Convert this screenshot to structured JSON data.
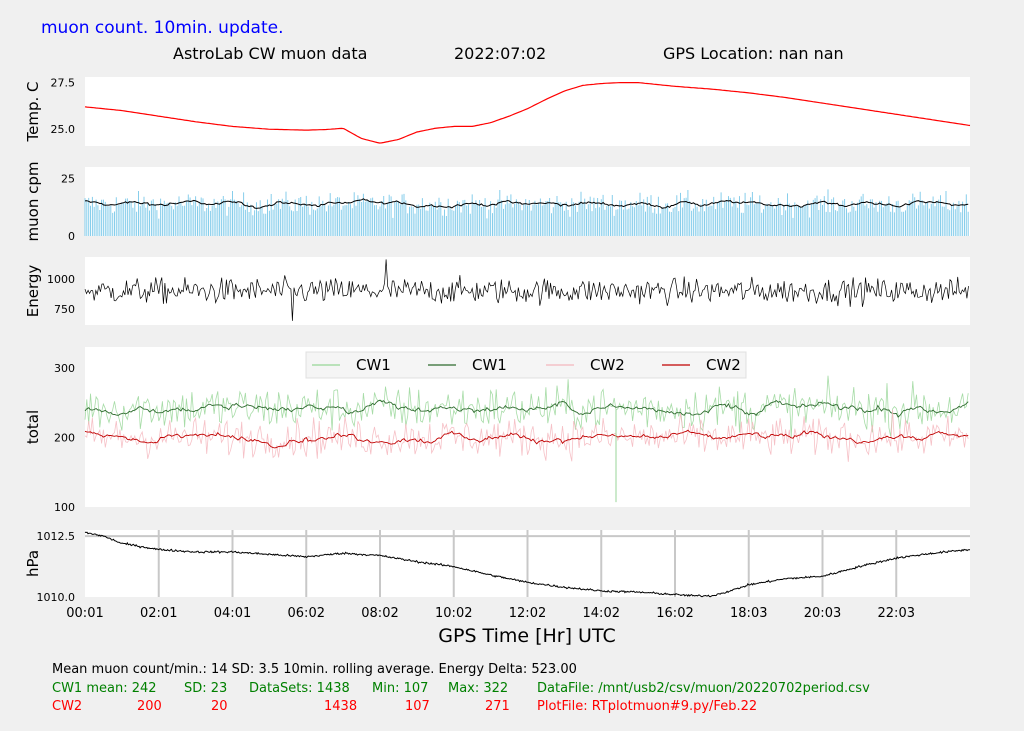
{
  "header": {
    "update_label": "muon count.  10min. update.",
    "title": "AstroLab CW muon data",
    "date": "2022:07:02",
    "gps_location": "GPS Location: nan   nan"
  },
  "colors": {
    "temperature": "#ff0000",
    "muon_bars": "#87ceeb",
    "muon_avg": "#000000",
    "energy": "#000000",
    "cw1_raw": "#98d698",
    "cw1_avg": "#2e6b2e",
    "cw2_raw": "#f4b6bd",
    "cw2_avg": "#c00000",
    "pressure": "#000000",
    "green_text": "#008000",
    "red_text": "#ff0000",
    "blue_text": "#0000ff"
  },
  "chart_data": [
    {
      "type": "line",
      "ylabel": "Temp. C",
      "yticks": [
        25.0,
        27.5
      ],
      "ylim": [
        24.1,
        27.8
      ],
      "xlim": [
        0,
        24
      ],
      "x": [
        0,
        1,
        2,
        3,
        4,
        5,
        6,
        6.5,
        7.0,
        7.5,
        8.0,
        8.5,
        9.0,
        9.5,
        10,
        10.5,
        11,
        11.5,
        12,
        12.5,
        13,
        13.5,
        14,
        14.5,
        15,
        15.5,
        16,
        17,
        18,
        19,
        20,
        21,
        22,
        23,
        24
      ],
      "y": [
        26.2,
        26.0,
        25.7,
        25.4,
        25.15,
        25.0,
        24.95,
        24.98,
        25.05,
        24.5,
        24.25,
        24.45,
        24.85,
        25.05,
        25.15,
        25.15,
        25.35,
        25.7,
        26.1,
        26.6,
        27.05,
        27.35,
        27.45,
        27.5,
        27.5,
        27.4,
        27.3,
        27.15,
        26.95,
        26.7,
        26.4,
        26.1,
        25.8,
        25.5,
        25.2
      ],
      "series": [
        {
          "name": "",
          "color": "#ff0000"
        }
      ]
    },
    {
      "type": "bar",
      "ylabel": "muon cpm",
      "yticks": [
        0,
        25
      ],
      "ylim": [
        0,
        30
      ],
      "xlim": [
        0,
        24
      ],
      "mean": 14,
      "sd": 3.5,
      "rolling_average_min": 10
    },
    {
      "type": "line",
      "ylabel": "Energy",
      "yticks": [
        750,
        1000
      ],
      "ylim": [
        620,
        1180
      ],
      "xlim": [
        0,
        24
      ],
      "mean": 900,
      "spike_max": 1160,
      "spike_min": 655
    },
    {
      "type": "line",
      "ylabel": "total",
      "yticks": [
        100,
        200,
        300
      ],
      "ylim": [
        100,
        330
      ],
      "xlim": [
        0,
        24
      ],
      "legend": [
        "CW1",
        "CW1",
        "CW2",
        "CW2"
      ],
      "legend_placement": "top-center",
      "series": [
        {
          "name": "CW1",
          "mean": 242,
          "sd": 23,
          "min": 107,
          "max": 322,
          "color": "#98d698"
        },
        {
          "name": "CW1",
          "mean": 242,
          "color": "#2e6b2e"
        },
        {
          "name": "CW2",
          "mean": 200,
          "sd": 20,
          "min": 107,
          "max": 271,
          "color": "#f4b6bd"
        },
        {
          "name": "CW2",
          "mean": 200,
          "color": "#c00000"
        }
      ]
    },
    {
      "type": "line",
      "ylabel": "hPa",
      "xlabel": "GPS Time  [Hr] UTC",
      "yticks": [
        1010.0,
        1012.5
      ],
      "ylim": [
        1010.0,
        1012.75
      ],
      "xlim": [
        0,
        24
      ],
      "xticks": [
        "00:01",
        "02:01",
        "04:01",
        "06:02",
        "08:02",
        "10:02",
        "12:02",
        "14:02",
        "16:02",
        "18:03",
        "20:03",
        "22:03"
      ],
      "grid": "vertical",
      "x": [
        0,
        0.5,
        1,
        2,
        3,
        4,
        5,
        6,
        7,
        8,
        9,
        10,
        11,
        12,
        13,
        14,
        15,
        16,
        16.5,
        17,
        17.5,
        18,
        19,
        20,
        21,
        22,
        23,
        24
      ],
      "y": [
        1012.65,
        1012.5,
        1012.2,
        1011.95,
        1011.85,
        1011.85,
        1011.75,
        1011.65,
        1011.8,
        1011.7,
        1011.45,
        1011.25,
        1010.9,
        1010.6,
        1010.4,
        1010.25,
        1010.2,
        1010.1,
        1010.05,
        1010.05,
        1010.25,
        1010.5,
        1010.75,
        1010.85,
        1011.25,
        1011.6,
        1011.8,
        1011.95
      ]
    }
  ],
  "footer": {
    "line1": "Mean muon count/min.: 14  SD: 3.5   10min. rolling average.    Energy Delta:  523.00",
    "cw1_label": "CW1 mean: 242",
    "cw1_sd": "SD: 23",
    "cw1_datasets": "DataSets: 1438",
    "cw1_min": "Min: 107",
    "cw1_max": "Max: 322",
    "datafile": "DataFile: /mnt/usb2/csv/muon/20220702period.csv",
    "cw2_label": "CW2",
    "cw2_mean": "200",
    "cw2_sd": "20",
    "cw2_datasets": "1438",
    "cw2_min": "107",
    "cw2_max": "271",
    "plotfile": "PlotFile: RTplotmuon#9.py/Feb.22"
  }
}
